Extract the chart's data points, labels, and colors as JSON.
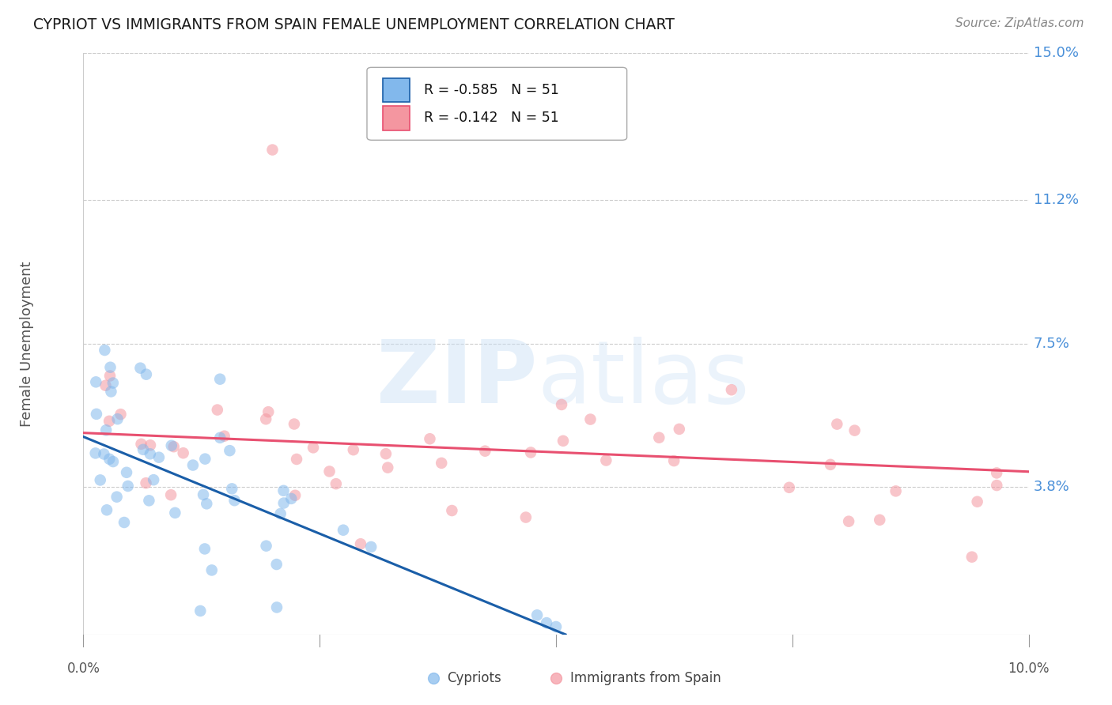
{
  "title": "CYPRIOT VS IMMIGRANTS FROM SPAIN FEMALE UNEMPLOYMENT CORRELATION CHART",
  "source": "Source: ZipAtlas.com",
  "ylabel": "Female Unemployment",
  "xlim": [
    0.0,
    0.1
  ],
  "ylim": [
    0.0,
    0.15
  ],
  "yticks": [
    0.038,
    0.075,
    0.112,
    0.15
  ],
  "ytick_labels": [
    "3.8%",
    "7.5%",
    "11.2%",
    "15.0%"
  ],
  "legend_label1": "Cypriots",
  "legend_label2": "Immigrants from Spain",
  "R1": "-0.585",
  "N1": "51",
  "R2": "-0.142",
  "N2": "51",
  "color_cypriot": "#82B8EC",
  "color_spain": "#F496A0",
  "color_line_cypriot": "#1A5EA8",
  "color_line_spain": "#E85070",
  "color_ytick_label": "#4A90D9",
  "background_color": "#FFFFFF",
  "cyp_line_x0": 0.0,
  "cyp_line_y0": 0.051,
  "cyp_line_x1": 0.051,
  "cyp_line_y1": 0.0,
  "spain_line_x0": 0.0,
  "spain_line_y0": 0.052,
  "spain_line_x1": 0.1,
  "spain_line_y1": 0.042
}
